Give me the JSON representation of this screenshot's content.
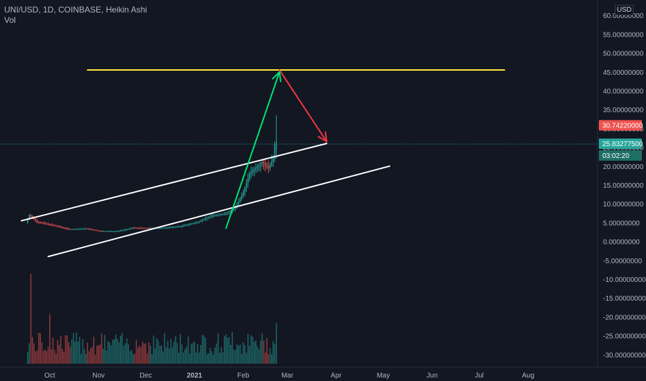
{
  "legend": {
    "title": "UNI/USD, 1D, COINBASE, Heikin Ashi",
    "volume": "Vol"
  },
  "currency_label": "USD",
  "price_badges": {
    "marked": "30.74220000",
    "last": "25.83277500",
    "countdown": "03:02:20"
  },
  "colors": {
    "background": "#131722",
    "up": "#26a69a",
    "down": "#ef5350",
    "resistance": "#ffeb3b",
    "channel": "#ffffff",
    "up_arrow": "#00e676",
    "down_arrow": "#f23645",
    "axis_text": "#b2b5be"
  },
  "chart_data": {
    "type": "candlestick",
    "symbol": "UNI/USD",
    "interval": "1D",
    "exchange": "COINBASE",
    "y_axis": {
      "ticks": [
        "60.00000000",
        "55.00000000",
        "50.00000000",
        "45.00000000",
        "40.00000000",
        "35.00000000",
        "30.00000000",
        "25.00000000",
        "20.00000000",
        "15.00000000",
        "10.00000000",
        "5.00000000",
        "0.00000000",
        "-5.00000000",
        "-10.00000000",
        "-15.00000000",
        "-20.00000000",
        "-25.00000000",
        "-30.00000000"
      ],
      "range": [
        -31.5,
        61.5
      ]
    },
    "x_axis": {
      "ticks": [
        "Oct",
        "Nov",
        "Dec",
        "2021",
        "Feb",
        "Mar",
        "Apr",
        "May",
        "Jun",
        "Jul",
        "Aug"
      ],
      "start": "2020-09-17",
      "end": "2021-08-31"
    },
    "series": [
      {
        "x": "2020-09-17",
        "price": 5.0
      },
      {
        "x": "2020-09-19",
        "price": 7.0
      },
      {
        "x": "2020-09-24",
        "price": 5.2
      },
      {
        "x": "2020-10-05",
        "price": 4.2
      },
      {
        "x": "2020-10-15",
        "price": 3.2
      },
      {
        "x": "2020-10-25",
        "price": 3.4
      },
      {
        "x": "2020-11-04",
        "price": 2.7
      },
      {
        "x": "2020-11-14",
        "price": 2.7
      },
      {
        "x": "2020-11-24",
        "price": 3.6
      },
      {
        "x": "2020-12-04",
        "price": 3.5
      },
      {
        "x": "2020-12-14",
        "price": 3.6
      },
      {
        "x": "2020-12-24",
        "price": 4.0
      },
      {
        "x": "2021-01-03",
        "price": 5.0
      },
      {
        "x": "2021-01-13",
        "price": 6.8
      },
      {
        "x": "2021-01-23",
        "price": 7.5
      },
      {
        "x": "2021-01-28",
        "price": 9.0
      },
      {
        "x": "2021-02-02",
        "price": 13.0
      },
      {
        "x": "2021-02-06",
        "price": 18.0
      },
      {
        "x": "2021-02-10",
        "price": 19.5
      },
      {
        "x": "2021-02-14",
        "price": 21.0
      },
      {
        "x": "2021-02-18",
        "price": 19.5
      },
      {
        "x": "2021-02-21",
        "price": 22.0
      },
      {
        "x": "2021-02-22",
        "price": 25.8
      }
    ],
    "volume_spikes": [
      {
        "x": "2020-09-19",
        "relative": 1.0
      },
      {
        "x": "2020-10-01",
        "relative": 0.55
      },
      {
        "x": "2021-01-25",
        "relative": 0.35
      },
      {
        "x": "2021-02-22",
        "relative": 0.45
      }
    ],
    "drawings": {
      "resistance_line": {
        "price": 45.5,
        "from": "2020-10-25",
        "to": "2021-07-17"
      },
      "channel_upper": {
        "from": [
          "2020-09-13",
          5.5
        ],
        "to": [
          "2021-03-26",
          26.0
        ]
      },
      "channel_lower": {
        "from": [
          "2020-09-30",
          -4.0
        ],
        "to": [
          "2021-05-05",
          20.0
        ]
      },
      "up_arrow": {
        "from": [
          "2021-01-21",
          3.5
        ],
        "to": [
          "2021-02-24",
          45.0
        ]
      },
      "down_arrow": {
        "from": [
          "2021-02-24",
          45.5
        ],
        "to": [
          "2021-03-26",
          26.5
        ]
      }
    }
  }
}
